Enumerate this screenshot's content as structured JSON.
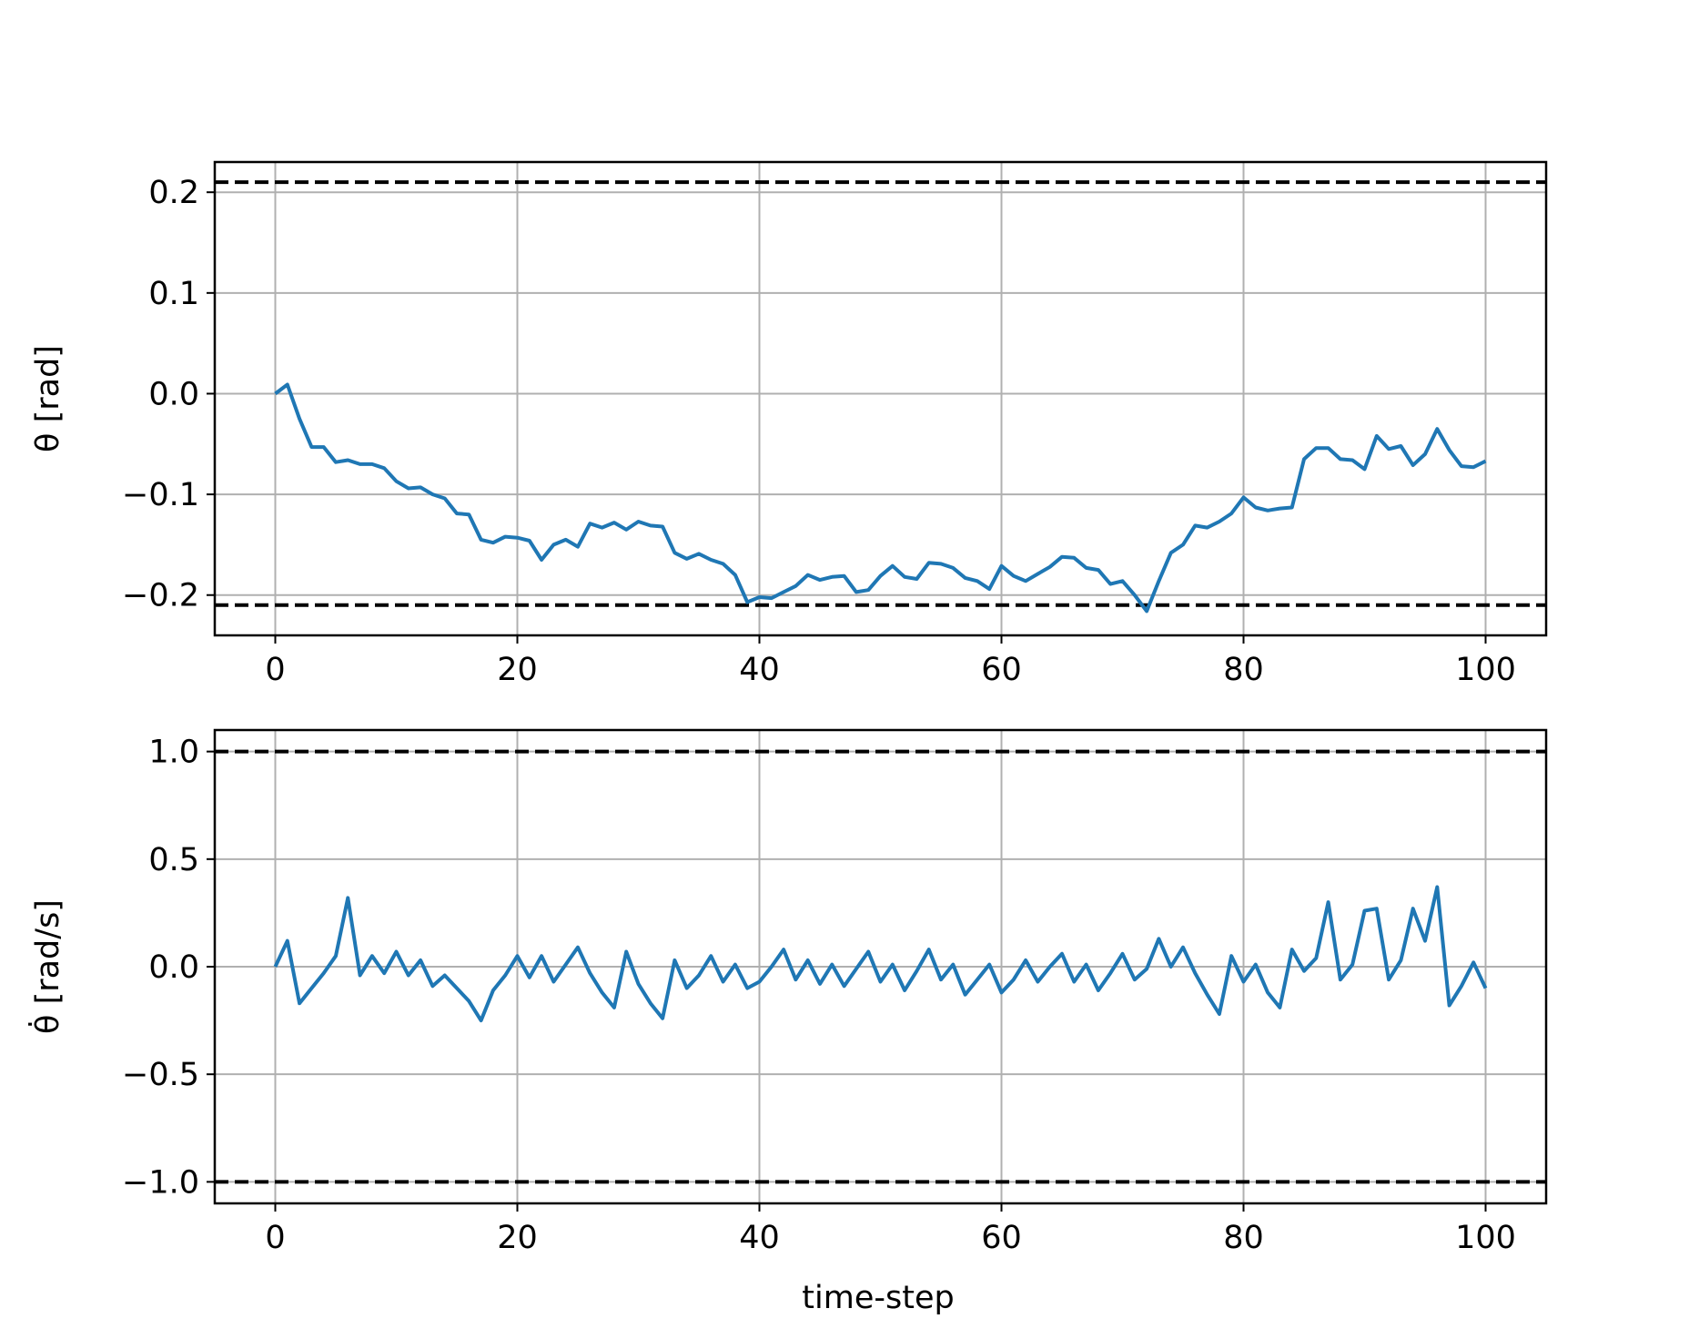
{
  "figure": {
    "xlabel": "time-step",
    "colors": {
      "series": "#1f77b4",
      "bound": "#000000",
      "grid": "#b0b0b0",
      "frame": "#000000"
    }
  },
  "chart_data": [
    {
      "type": "line",
      "ylabel": "θ [rad]",
      "xlabel": "",
      "xlim": [
        -5,
        105
      ],
      "ylim": [
        -0.24,
        0.23
      ],
      "xticks": [
        0,
        20,
        40,
        60,
        80,
        100
      ],
      "xtick_labels": [
        "0",
        "20",
        "40",
        "60",
        "80",
        "100"
      ],
      "yticks": [
        -0.2,
        -0.1,
        0.0,
        0.1,
        0.2
      ],
      "ytick_labels": [
        "−0.2",
        "−0.1",
        "0.0",
        "0.1",
        "0.2"
      ],
      "grid": true,
      "bounds": [
        0.21,
        -0.21
      ],
      "series": [
        {
          "values": [
            0.0,
            0.009,
            -0.025,
            -0.053,
            -0.053,
            -0.068,
            -0.066,
            -0.07,
            -0.07,
            -0.074,
            -0.087,
            -0.094,
            -0.093,
            -0.1,
            -0.104,
            -0.119,
            -0.12,
            -0.145,
            -0.148,
            -0.142,
            -0.143,
            -0.146,
            -0.165,
            -0.15,
            -0.145,
            -0.152,
            -0.129,
            -0.133,
            -0.128,
            -0.135,
            -0.127,
            -0.131,
            -0.132,
            -0.158,
            -0.164,
            -0.159,
            -0.165,
            -0.169,
            -0.18,
            -0.207,
            -0.202,
            -0.203,
            -0.197,
            -0.191,
            -0.18,
            -0.185,
            -0.182,
            -0.181,
            -0.197,
            -0.195,
            -0.181,
            -0.171,
            -0.182,
            -0.184,
            -0.168,
            -0.169,
            -0.173,
            -0.183,
            -0.186,
            -0.194,
            -0.171,
            -0.181,
            -0.186,
            -0.179,
            -0.172,
            -0.162,
            -0.163,
            -0.173,
            -0.175,
            -0.189,
            -0.186,
            -0.2,
            -0.216,
            -0.186,
            -0.158,
            -0.15,
            -0.131,
            -0.133,
            -0.127,
            -0.119,
            -0.103,
            -0.113,
            -0.116,
            -0.114,
            -0.113,
            -0.065,
            -0.054,
            -0.054,
            -0.065,
            -0.066,
            -0.075,
            -0.042,
            -0.055,
            -0.052,
            -0.071,
            -0.06,
            -0.035,
            -0.056,
            -0.072,
            -0.073,
            -0.067
          ]
        }
      ]
    },
    {
      "type": "line",
      "ylabel": "θ̇ [rad/s]",
      "xlabel": "time-step",
      "xlim": [
        -5,
        105
      ],
      "ylim": [
        -1.1,
        1.1
      ],
      "xticks": [
        0,
        20,
        40,
        60,
        80,
        100
      ],
      "xtick_labels": [
        "0",
        "20",
        "40",
        "60",
        "80",
        "100"
      ],
      "yticks": [
        -1.0,
        -0.5,
        0.0,
        0.5,
        1.0
      ],
      "ytick_labels": [
        "−1.0",
        "−0.5",
        "0.0",
        "0.5",
        "1.0"
      ],
      "grid": true,
      "bounds": [
        1.0,
        -1.0
      ],
      "series": [
        {
          "values": [
            0.0,
            0.12,
            -0.17,
            -0.1,
            -0.03,
            0.05,
            0.32,
            -0.04,
            0.05,
            -0.03,
            0.07,
            -0.04,
            0.03,
            -0.09,
            -0.04,
            -0.1,
            -0.16,
            -0.25,
            -0.11,
            -0.04,
            0.05,
            -0.05,
            0.05,
            -0.07,
            0.01,
            0.09,
            -0.03,
            -0.12,
            -0.19,
            0.07,
            -0.08,
            -0.17,
            -0.24,
            0.03,
            -0.1,
            -0.04,
            0.05,
            -0.07,
            0.01,
            -0.1,
            -0.07,
            0.0,
            0.08,
            -0.06,
            0.03,
            -0.08,
            0.01,
            -0.09,
            -0.01,
            0.07,
            -0.07,
            0.01,
            -0.11,
            -0.02,
            0.08,
            -0.06,
            0.01,
            -0.13,
            -0.06,
            0.01,
            -0.12,
            -0.06,
            0.03,
            -0.07,
            0.0,
            0.06,
            -0.07,
            0.01,
            -0.11,
            -0.03,
            0.06,
            -0.06,
            -0.01,
            0.13,
            0.0,
            0.09,
            -0.03,
            -0.13,
            -0.22,
            0.05,
            -0.07,
            0.01,
            -0.12,
            -0.19,
            0.08,
            -0.02,
            0.04,
            0.3,
            -0.06,
            0.01,
            0.26,
            0.27,
            -0.06,
            0.03,
            0.27,
            0.12,
            0.37,
            -0.18,
            -0.09,
            0.02,
            -0.1
          ]
        }
      ]
    }
  ]
}
